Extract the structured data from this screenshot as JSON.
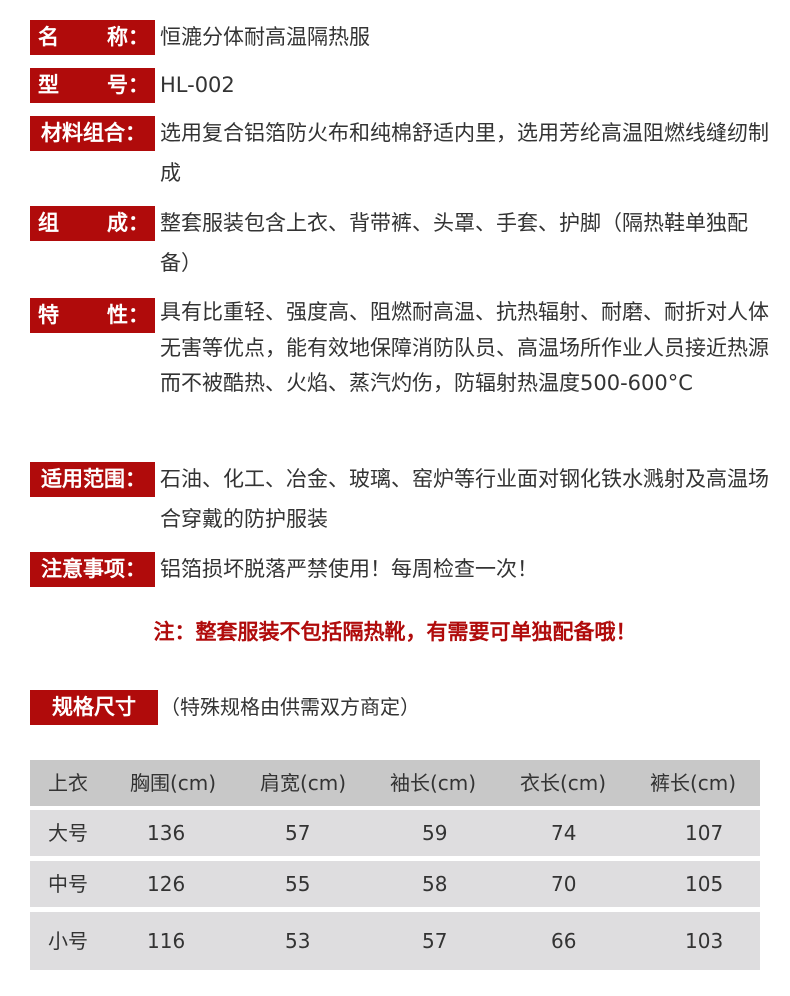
{
  "fields": [
    {
      "label_a": "名",
      "label_b": "称：",
      "value": "恒漉分体耐高温隔热服"
    },
    {
      "label_a": "型",
      "label_b": "号：",
      "value": "HL-002"
    },
    {
      "label": "材料组合：",
      "value": "选用复合铝箔防火布和纯棉舒适内里，选用芳纶高温阻燃线缝纫制成"
    },
    {
      "label_a": "组",
      "label_b": "成：",
      "value": "整套服装包含上衣、背带裤、头罩、手套、护脚（隔热鞋单独配备）"
    },
    {
      "label_a": "特",
      "label_b": "性：",
      "value": "具有比重轻、强度高、阻燃耐高温、抗热辐射、耐磨、耐折对人体无害等优点，能有效地保障消防队员、高温场所作业人员接近热源而不被酷热、火焰、蒸汽灼伤，防辐射热温度500-600°C"
    },
    {
      "label": "适用范围：",
      "value": "石油、化工、冶金、玻璃、窑炉等行业面对钢化铁水溅射及高温场合穿戴的防护服装"
    },
    {
      "label": "注意事项：",
      "value": "铝箔损坏脱落严禁使用！每周检查一次！"
    }
  ],
  "note": "注：整套服装不包括隔热靴，有需要可单独配备哦！",
  "spec": {
    "label": "规格尺寸",
    "subtitle": "（特殊规格由供需双方商定）"
  },
  "table": {
    "headers": [
      "上衣",
      "胸围(cm)",
      "肩宽(cm)",
      "袖长(cm)",
      "衣长(cm)",
      "裤长(cm)"
    ],
    "rows": [
      [
        "大号",
        "136",
        "57",
        "59",
        "74",
        "107"
      ],
      [
        "中号",
        "126",
        "55",
        "58",
        "70",
        "105"
      ],
      [
        "小号",
        "116",
        "53",
        "57",
        "66",
        "103"
      ]
    ]
  },
  "colors": {
    "accent": "#b00b0b",
    "table_header": "#c8c8c8",
    "table_row": "#dedddf"
  }
}
